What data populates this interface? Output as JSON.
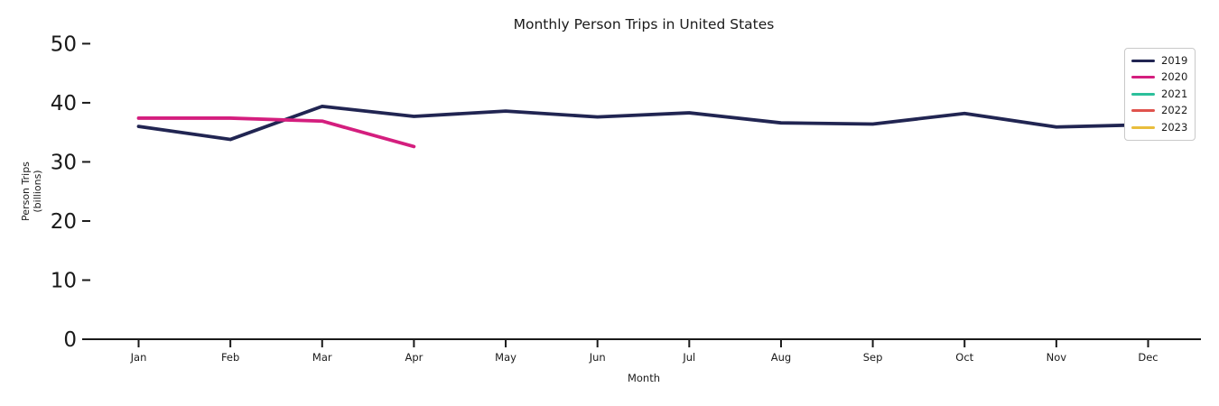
{
  "chart_data": {
    "type": "line",
    "title": "Monthly Person Trips in United States",
    "xlabel": "Month",
    "ylabel": "Person Trips\n(billions)",
    "categories": [
      "Jan",
      "Feb",
      "Mar",
      "Apr",
      "May",
      "Jun",
      "Jul",
      "Aug",
      "Sep",
      "Oct",
      "Nov",
      "Dec"
    ],
    "yticks": [
      0,
      10,
      20,
      30,
      40,
      50
    ],
    "ylim": [
      0,
      55
    ],
    "grid": false,
    "legend_position": "upper right",
    "axis_color": "#1a1a1a",
    "series": [
      {
        "name": "2019",
        "color": "#212552",
        "values": [
          36.0,
          33.8,
          39.4,
          37.7,
          38.6,
          37.6,
          38.3,
          36.6,
          36.4,
          38.2,
          35.9,
          36.3
        ]
      },
      {
        "name": "2020",
        "color": "#d41e7e",
        "values": [
          37.4,
          37.4,
          36.9,
          32.6
        ]
      },
      {
        "name": "2021",
        "color": "#2cc09b",
        "values": []
      },
      {
        "name": "2022",
        "color": "#e0534d",
        "values": []
      },
      {
        "name": "2023",
        "color": "#e9bd3c",
        "values": []
      }
    ]
  }
}
